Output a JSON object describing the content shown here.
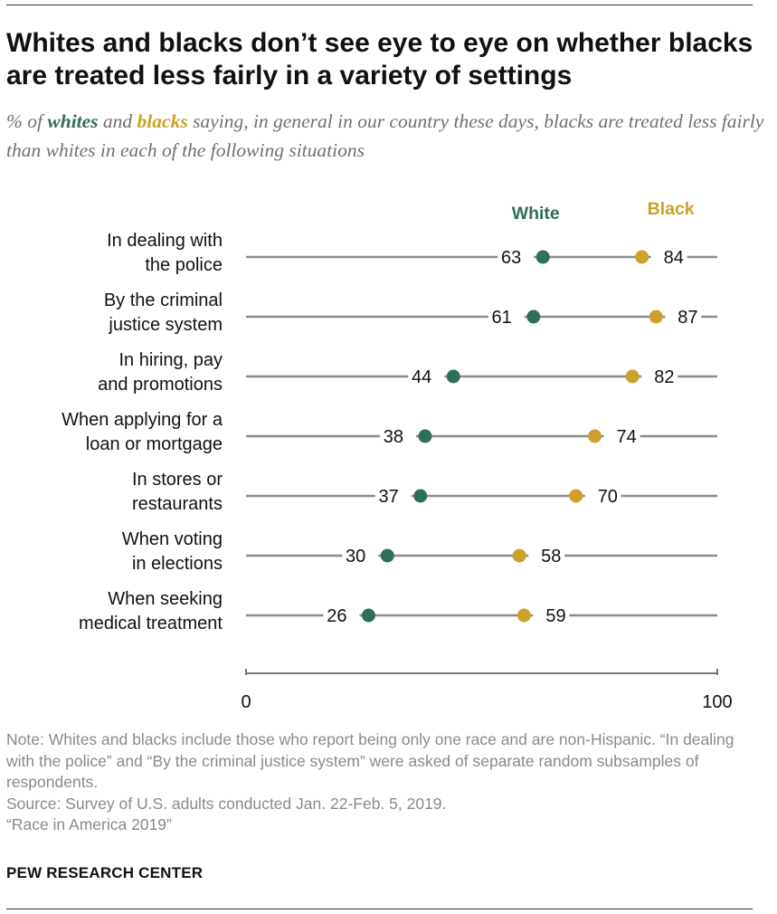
{
  "title": "Whites and blacks don’t see eye to eye on whether blacks are treated less fairly in a variety of settings",
  "subtitle": {
    "prefix": "% of ",
    "whites": "whites",
    "and": " and ",
    "blacks": "blacks",
    "suffix": " saying, in general in our country these days, blacks are treated less fairly than whites in each of the following situations"
  },
  "colors": {
    "white_series": "#2f6f57",
    "black_series": "#c9a227",
    "line": "#8c8c8c",
    "axis": "#777777"
  },
  "chart_data": {
    "type": "dot",
    "xlim": [
      0,
      100
    ],
    "x_ticks": [
      "0",
      "100"
    ],
    "legend": [
      "White",
      "Black"
    ],
    "categories": [
      [
        "In dealing with",
        "the police"
      ],
      [
        "By the criminal",
        "justice system"
      ],
      [
        "In hiring, pay",
        "and promotions"
      ],
      [
        "When applying for a",
        "loan or mortgage"
      ],
      [
        "In stores or",
        "restaurants"
      ],
      [
        "When voting",
        "in elections"
      ],
      [
        "When seeking",
        "medical treatment"
      ]
    ],
    "series": [
      {
        "name": "White",
        "values": [
          63,
          61,
          44,
          38,
          37,
          30,
          26
        ]
      },
      {
        "name": "Black",
        "values": [
          84,
          87,
          82,
          74,
          70,
          58,
          59
        ]
      }
    ]
  },
  "notes": [
    "Note: Whites and blacks include those who report being only one race and are non-Hispanic. “In dealing with the police” and “By the criminal justice system” were asked of separate random subsamples of respondents.",
    "Source: Survey of U.S. adults conducted Jan. 22-Feb. 5, 2019.",
    "“Race in America 2019”"
  ],
  "credit": "PEW RESEARCH CENTER"
}
